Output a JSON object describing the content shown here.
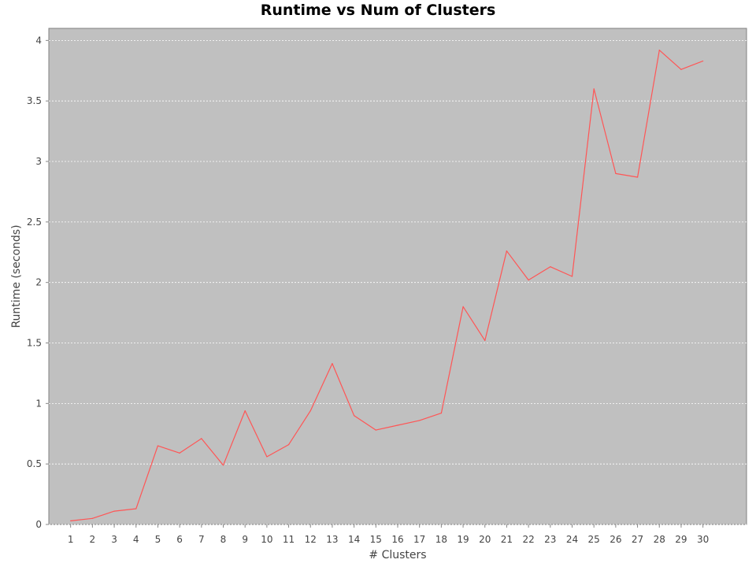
{
  "chart_data": {
    "type": "line",
    "title": "Runtime vs Num of Clusters",
    "xlabel": "# Clusters",
    "ylabel": "Runtime (seconds)",
    "x": [
      1,
      2,
      3,
      4,
      5,
      6,
      7,
      8,
      9,
      10,
      11,
      12,
      13,
      14,
      15,
      16,
      17,
      18,
      19,
      20,
      21,
      22,
      23,
      24,
      25,
      26,
      27,
      28,
      29,
      30
    ],
    "series": [
      {
        "values": [
          0.03,
          0.05,
          0.11,
          0.13,
          0.65,
          0.59,
          0.71,
          0.49,
          0.94,
          0.56,
          0.66,
          0.94,
          1.33,
          0.9,
          0.78,
          0.82,
          0.86,
          0.92,
          1.8,
          1.52,
          2.26,
          2.02,
          2.13,
          2.05,
          3.6,
          2.9,
          2.87,
          3.92,
          3.76,
          3.83
        ],
        "color": "#ff5555"
      }
    ],
    "xlim": [
      0,
      32
    ],
    "ylim": [
      0,
      4.1
    ],
    "y_ticks": [
      0,
      0.5,
      1,
      1.5,
      2,
      2.5,
      3,
      3.5,
      4
    ],
    "y_tick_labels": [
      "0",
      "0.5",
      "1",
      "1.5",
      "2",
      "2.5",
      "3",
      "3.5",
      "4"
    ],
    "x_tick_labels": [
      "1",
      "2",
      "3",
      "4",
      "5",
      "6",
      "7",
      "8",
      "9",
      "10",
      "11",
      "12",
      "13",
      "14",
      "15",
      "16",
      "17",
      "18",
      "19",
      "20",
      "21",
      "22",
      "23",
      "24",
      "25",
      "26",
      "27",
      "28",
      "29",
      "30"
    ],
    "grid": true,
    "legend": "none",
    "plot_background": "#c0c0c0",
    "grid_color": "#ffffff"
  }
}
